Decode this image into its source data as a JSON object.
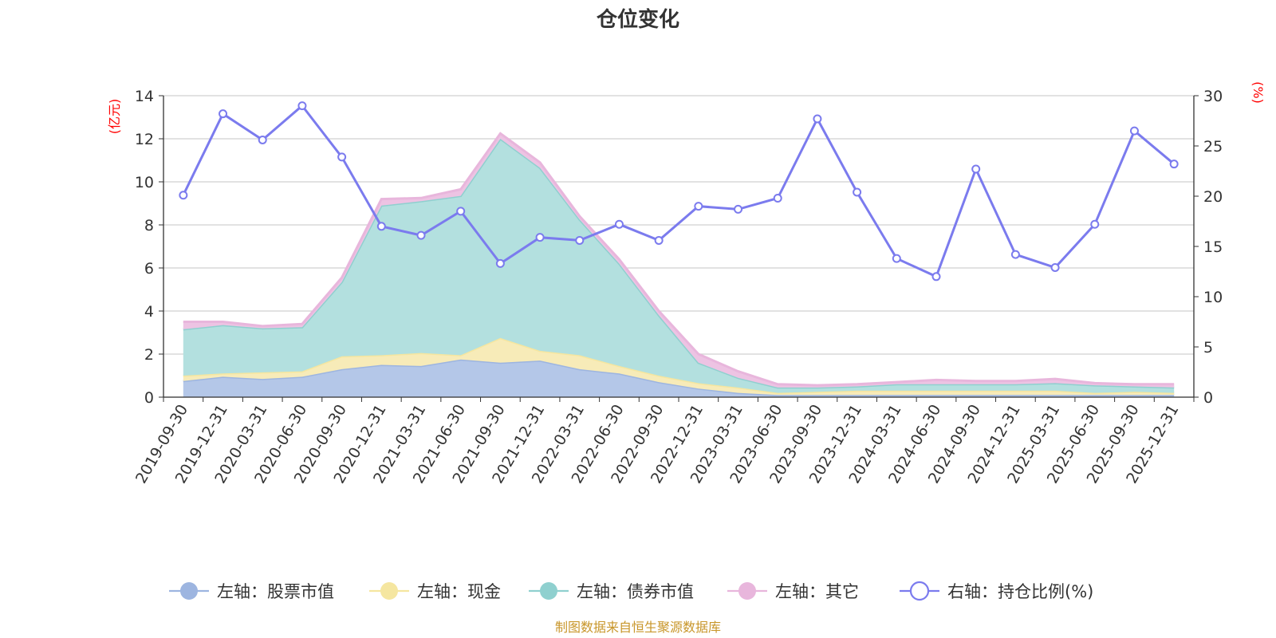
{
  "chart_data": {
    "type": "area",
    "title": "仓位变化",
    "source": "制图数据来自恒生聚源数据库",
    "left_axis": {
      "unit": "(亿元)",
      "ylim": [
        0,
        14
      ],
      "ticks": [
        "0",
        "2",
        "4",
        "6",
        "8",
        "10",
        "12",
        "14"
      ]
    },
    "right_axis": {
      "unit": "(%)",
      "ylim": [
        0,
        30
      ],
      "ticks": [
        "0",
        "5",
        "10",
        "15",
        "20",
        "25",
        "30"
      ]
    },
    "x": [
      "2019-09-30",
      "2019-12-31",
      "2020-03-31",
      "2020-06-30",
      "2020-09-30",
      "2020-12-31",
      "2021-03-31",
      "2021-06-30",
      "2021-09-30",
      "2021-12-31",
      "2022-03-31",
      "2022-06-30",
      "2022-09-30",
      "2022-12-31",
      "2023-03-31",
      "2023-06-30",
      "2023-09-30",
      "2023-12-31",
      "2024-03-31",
      "2024-06-30",
      "2024-09-30",
      "2024-12-31",
      "2025-03-31",
      "2025-06-30",
      "2025-09-30",
      "2025-12-31"
    ],
    "stacked_series": [
      {
        "name": "左轴：股票市值",
        "color": "#9db5e0",
        "fill": "#b4c7e8",
        "values": [
          0.75,
          0.95,
          0.85,
          0.95,
          1.3,
          1.5,
          1.45,
          1.75,
          1.6,
          1.7,
          1.3,
          1.1,
          0.7,
          0.4,
          0.2,
          0.1,
          0.1,
          0.1,
          0.1,
          0.1,
          0.1,
          0.1,
          0.1,
          0.1,
          0.1,
          0.1
        ]
      },
      {
        "name": "左轴：现金",
        "color": "#f5e6a0",
        "fill": "#f7ebb8",
        "values": [
          0.25,
          0.15,
          0.3,
          0.25,
          0.6,
          0.45,
          0.6,
          0.2,
          1.15,
          0.45,
          0.65,
          0.35,
          0.3,
          0.25,
          0.25,
          0.1,
          0.15,
          0.2,
          0.2,
          0.2,
          0.2,
          0.2,
          0.2,
          0.1,
          0.15,
          0.1
        ]
      },
      {
        "name": "左轴：债券市值",
        "color": "#8fd0cf",
        "fill": "#b3e0df",
        "values": [
          2.15,
          2.25,
          2.05,
          2.05,
          3.45,
          6.95,
          7.05,
          7.4,
          9.25,
          8.5,
          6.3,
          4.75,
          2.8,
          0.95,
          0.45,
          0.25,
          0.2,
          0.2,
          0.3,
          0.3,
          0.3,
          0.3,
          0.35,
          0.35,
          0.25,
          0.25
        ]
      },
      {
        "name": "左轴：其它",
        "color": "#e8b6dc",
        "fill": "#edc3e3",
        "values": [
          0.35,
          0.15,
          0.1,
          0.15,
          0.2,
          0.3,
          0.15,
          0.3,
          0.25,
          0.25,
          0.15,
          0.2,
          0.2,
          0.4,
          0.3,
          0.15,
          0.1,
          0.1,
          0.1,
          0.2,
          0.15,
          0.15,
          0.2,
          0.1,
          0.1,
          0.15
        ]
      }
    ],
    "line_series": {
      "name": "右轴：持仓比例(%)",
      "color": "#7b7bee",
      "values": [
        20.1,
        28.2,
        25.6,
        29.0,
        23.9,
        17.0,
        16.1,
        18.5,
        13.3,
        15.9,
        15.6,
        17.2,
        15.6,
        19.0,
        18.7,
        19.8,
        27.7,
        20.4,
        13.8,
        12.0,
        22.7,
        14.2,
        12.9,
        17.2,
        26.5,
        23.2
      ]
    },
    "grid": true,
    "legend_position": "bottom"
  }
}
